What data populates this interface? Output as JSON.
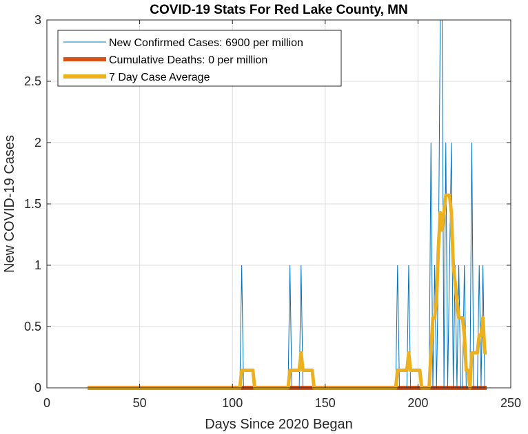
{
  "chart_data": {
    "type": "line",
    "title": "COVID-19 Stats For Red Lake County, MN",
    "xlabel": "Days Since 2020 Began",
    "ylabel": "New COVID-19 Cases",
    "xlim": [
      0,
      250
    ],
    "ylim": [
      0,
      3
    ],
    "xticks": [
      0,
      50,
      100,
      150,
      200,
      250
    ],
    "xtick_labels": [
      "0",
      "50",
      "100",
      "150",
      "200",
      "250"
    ],
    "yticks": [
      0,
      0.5,
      1,
      1.5,
      2,
      2.5,
      3
    ],
    "ytick_labels": [
      "0",
      "0.5",
      "1",
      "1.5",
      "2",
      "2.5",
      "3"
    ],
    "grid": true,
    "legend_position": "top-left",
    "series": [
      {
        "name": "New Confirmed Cases: 6900 per million",
        "color": "#0072BD",
        "style": "thin",
        "x_start": 22,
        "x_end": 237,
        "spikes": [
          [
            105,
            1
          ],
          [
            131,
            1
          ],
          [
            137,
            1
          ],
          [
            189,
            1
          ],
          [
            195,
            1
          ],
          [
            207,
            2
          ],
          [
            209,
            1
          ],
          [
            211,
            1
          ],
          [
            212,
            3
          ],
          [
            213,
            3
          ],
          [
            215,
            2
          ],
          [
            217,
            1
          ],
          [
            218,
            2
          ],
          [
            220,
            1
          ],
          [
            222,
            1
          ],
          [
            225,
            1
          ],
          [
            229,
            2
          ],
          [
            233,
            1
          ],
          [
            235,
            1
          ]
        ]
      },
      {
        "name": "Cumulative Deaths: 0 per million",
        "color": "#D95319",
        "style": "thick",
        "x": [
          22,
          237
        ],
        "y": [
          0,
          0
        ]
      },
      {
        "name": "7 Day Case Average",
        "color": "#EDB120",
        "style": "thick",
        "x": [
          22,
          104,
          105,
          111,
          112,
          130,
          131,
          136,
          137,
          138,
          143,
          144,
          188,
          189,
          194,
          195,
          196,
          201,
          202,
          206,
          207,
          208,
          209,
          210,
          211,
          212,
          213,
          214,
          215,
          216,
          217,
          218,
          219,
          220,
          221,
          222,
          223,
          224,
          225,
          226,
          227,
          228,
          229,
          230,
          231,
          232,
          233,
          234,
          235,
          236,
          237
        ],
        "y": [
          0,
          0,
          0.143,
          0.143,
          0,
          0,
          0.143,
          0.143,
          0.286,
          0.143,
          0.143,
          0,
          0,
          0.143,
          0.143,
          0.286,
          0.143,
          0.143,
          0,
          0,
          0.286,
          0.571,
          0.571,
          0.714,
          1.143,
          1.429,
          1.286,
          1.429,
          1.571,
          1.571,
          1.571,
          1.429,
          1.0,
          0.857,
          0.714,
          0.571,
          0.571,
          0.571,
          0.429,
          0.143,
          0.143,
          0,
          0.286,
          0.286,
          0.286,
          0.286,
          0.429,
          0.429,
          0.571,
          0.286,
          0.286
        ]
      }
    ]
  }
}
